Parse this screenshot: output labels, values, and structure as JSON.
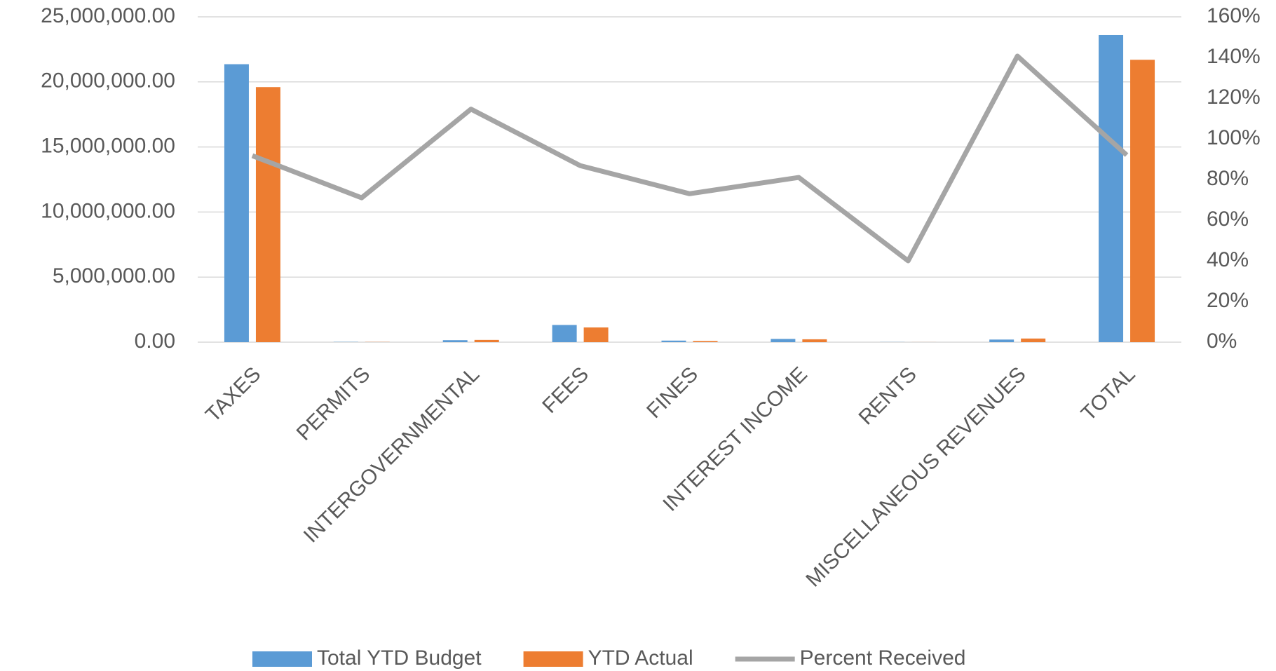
{
  "chart_data": {
    "type": "bar",
    "categories": [
      "TAXES",
      "PERMITS",
      "INTERGOVERNMENTAL",
      "FEES",
      "FINES",
      "INTEREST INCOME",
      "RENTS",
      "MISCELLANEOUS REVENUES",
      "TOTAL"
    ],
    "series": [
      {
        "name": "Total YTD Budget",
        "color": "#5b9bd5",
        "values": [
          21360000,
          20000,
          150000,
          1320000,
          120000,
          250000,
          10000,
          200000,
          23600000
        ]
      },
      {
        "name": "YTD Actual",
        "color": "#ed7d31",
        "values": [
          19600000,
          15000,
          170000,
          1130000,
          90000,
          220000,
          4000,
          280000,
          21700000
        ]
      },
      {
        "name": "Percent Received",
        "type": "line",
        "axis": "y2",
        "color": "#a5a5a5",
        "values": [
          91.7,
          71,
          114.6,
          86.8,
          73,
          81,
          40,
          140.7,
          92
        ]
      }
    ],
    "ylim": [
      0,
      25000000
    ],
    "yticks": [
      {
        "value": 0,
        "label": "0.00"
      },
      {
        "value": 5000000,
        "label": "5,000,000.00"
      },
      {
        "value": 10000000,
        "label": "10,000,000.00"
      },
      {
        "value": 15000000,
        "label": "15,000,000.00"
      },
      {
        "value": 20000000,
        "label": "20,000,000.00"
      },
      {
        "value": 25000000,
        "label": "25,000,000.00"
      }
    ],
    "y2lim": [
      0,
      160
    ],
    "y2ticks": [
      {
        "value": 0,
        "label": "0%"
      },
      {
        "value": 20,
        "label": "20%"
      },
      {
        "value": 40,
        "label": "40%"
      },
      {
        "value": 60,
        "label": "60%"
      },
      {
        "value": 80,
        "label": "80%"
      },
      {
        "value": 100,
        "label": "100%"
      },
      {
        "value": 120,
        "label": "120%"
      },
      {
        "value": 140,
        "label": "140%"
      },
      {
        "value": 160,
        "label": "160%"
      }
    ],
    "grid": true,
    "legend": "bottom"
  }
}
